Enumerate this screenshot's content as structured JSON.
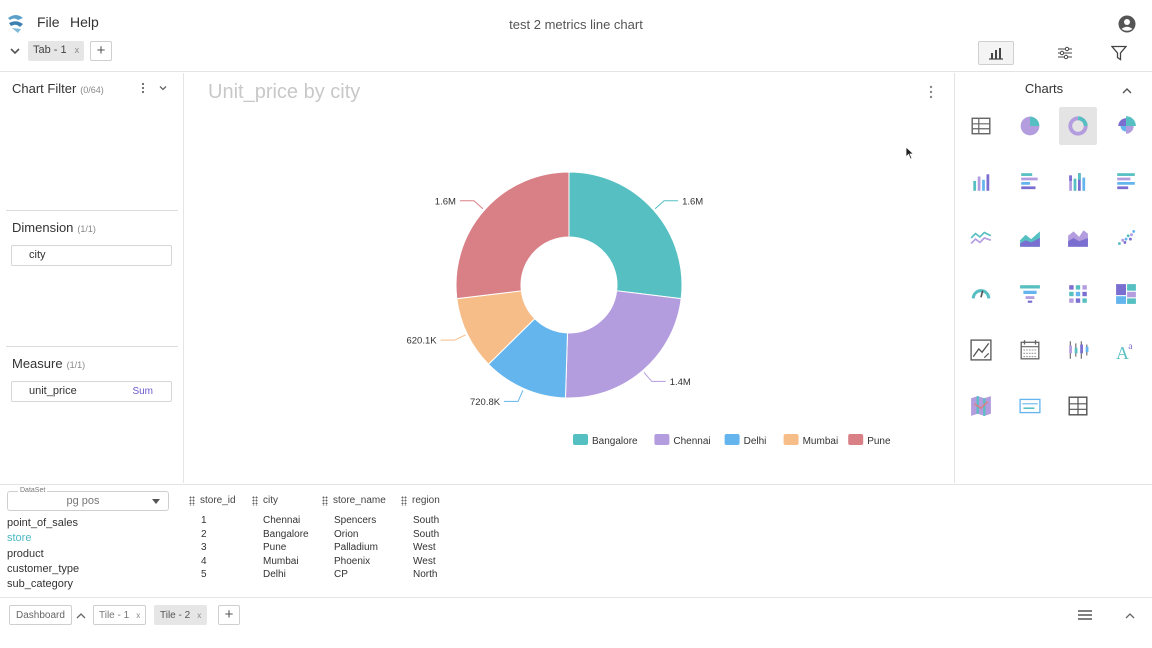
{
  "app": {
    "title": "test 2 metrics line chart",
    "menu": [
      "File",
      "Help"
    ]
  },
  "tabs": [
    {
      "label": "Tab - 1",
      "close": "x"
    }
  ],
  "add_label": "+",
  "left_panel": {
    "chart_filter": {
      "title": "Chart Filter",
      "count": "(0/64)"
    },
    "dimension": {
      "title": "Dimension",
      "count": "(1/1)",
      "field": "city"
    },
    "measure": {
      "title": "Measure",
      "count": "(1/1)",
      "field": "unit_price",
      "aggregation": "Sum"
    }
  },
  "chart": {
    "title": "Unit_price by city"
  },
  "chart_data": {
    "type": "pie",
    "donut": true,
    "categories": [
      "Bangalore",
      "Chennai",
      "Delhi",
      "Mumbai",
      "Pune"
    ],
    "values": [
      1600000,
      1400000,
      720800,
      620100,
      1600000
    ],
    "labels": [
      "1.6M",
      "1.4M",
      "720.8K",
      "620.1K",
      "1.6M"
    ],
    "colors": [
      "#56bfc2",
      "#b39ddf",
      "#64b5ee",
      "#f6bd88",
      "#d98087"
    ],
    "legend": "bottom-right"
  },
  "right_panel": {
    "title": "Charts",
    "icons": [
      "table-chart-icon",
      "pie-chart-icon",
      "donut-chart-icon",
      "rose-chart-icon",
      "bar-chart-icon",
      "horizontal-bar-chart-icon",
      "stacked-bar-chart-icon",
      "stacked-horizontal-bar-chart-icon",
      "line-chart-icon",
      "area-chart-icon",
      "stacked-area-chart-icon",
      "scatter-chart-icon",
      "gauge-chart-icon",
      "funnel-chart-icon",
      "heatmap-chart-icon",
      "treemap-chart-icon",
      "text-editor-chart-icon",
      "calendar-chart-icon",
      "boxplot-chart-icon",
      "rich-text-chart-icon",
      "geo-map-chart-icon",
      "filter-card-icon",
      "crosstab-chart-icon"
    ],
    "selected": "donut-chart-icon"
  },
  "dataset": {
    "label": "DataSet",
    "value": "pg pos",
    "tables": [
      "point_of_sales",
      "store",
      "product",
      "customer_type",
      "sub_category"
    ],
    "active_table": "store"
  },
  "data_table": {
    "columns": [
      "store_id",
      "city",
      "store_name",
      "region"
    ],
    "rows": [
      [
        "1",
        "Chennai",
        "Spencers",
        "South"
      ],
      [
        "2",
        "Bangalore",
        "Orion",
        "South"
      ],
      [
        "3",
        "Pune",
        "Palladium",
        "West"
      ],
      [
        "4",
        "Mumbai",
        "Phoenix",
        "West"
      ],
      [
        "5",
        "Delhi",
        "CP",
        "North"
      ]
    ]
  },
  "footer": {
    "dashboard_label": "Dashboard",
    "tiles": [
      {
        "label": "Tile - 1",
        "close": "x",
        "active": false
      },
      {
        "label": "Tile - 2",
        "close": "x",
        "active": true
      }
    ]
  }
}
